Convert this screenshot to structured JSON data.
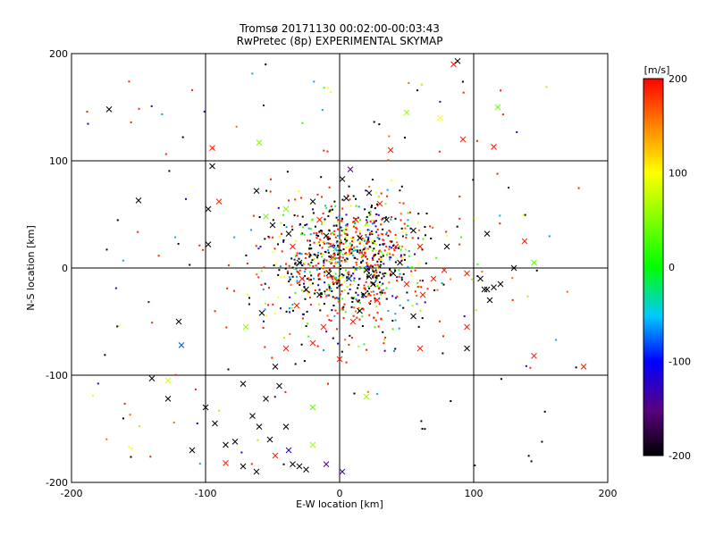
{
  "chart_data": {
    "type": "scatter",
    "title": "Tromsø 20171130 00:02:00-00:03:43",
    "subtitle": "RwPretec (8p) EXPERIMENTAL SKYMAP",
    "xlabel": "E-W location [km]",
    "ylabel": "N-S location [km]",
    "xlim": [
      -200,
      200
    ],
    "ylim": [
      -200,
      200
    ],
    "xticks": [
      "-200",
      "-100",
      "0",
      "100",
      "200"
    ],
    "yticks": [
      "-200",
      "-100",
      "0",
      "100",
      "200"
    ],
    "grid": true,
    "colorbar": {
      "label": "[m/s]",
      "range": [
        -200,
        200
      ],
      "ticks": [
        "200",
        "100",
        "0",
        "-100",
        "-200"
      ],
      "colors": [
        "#000000",
        "#5a0080",
        "#0000ff",
        "#00c8ff",
        "#00ff00",
        "#ffff00",
        "#ff8000",
        "#ff0000"
      ]
    },
    "cross_points": [
      {
        "x": -172,
        "y": 148,
        "v": -200
      },
      {
        "x": -150,
        "y": 63,
        "v": -200
      },
      {
        "x": -120,
        "y": -50,
        "v": -200
      },
      {
        "x": -140,
        "y": -103,
        "v": -200
      },
      {
        "x": -128,
        "y": -122,
        "v": -200
      },
      {
        "x": -110,
        "y": -170,
        "v": -200
      },
      {
        "x": -95,
        "y": 112,
        "v": 190
      },
      {
        "x": -95,
        "y": 95,
        "v": -200
      },
      {
        "x": -98,
        "y": 55,
        "v": -200
      },
      {
        "x": -98,
        "y": 22,
        "v": -200
      },
      {
        "x": -90,
        "y": 62,
        "v": 185
      },
      {
        "x": -100,
        "y": -130,
        "v": -200
      },
      {
        "x": -93,
        "y": -145,
        "v": -200
      },
      {
        "x": -85,
        "y": -165,
        "v": -200
      },
      {
        "x": -78,
        "y": -162,
        "v": -200
      },
      {
        "x": -85,
        "y": -182,
        "v": 190
      },
      {
        "x": -72,
        "y": -185,
        "v": -200
      },
      {
        "x": -72,
        "y": -108,
        "v": -200
      },
      {
        "x": -60,
        "y": 117,
        "v": 50
      },
      {
        "x": -62,
        "y": 72,
        "v": -200
      },
      {
        "x": -55,
        "y": 48,
        "v": 40
      },
      {
        "x": -50,
        "y": 40,
        "v": -200
      },
      {
        "x": -70,
        "y": -55,
        "v": 60
      },
      {
        "x": -58,
        "y": -42,
        "v": -200
      },
      {
        "x": -65,
        "y": -138,
        "v": -200
      },
      {
        "x": -60,
        "y": -148,
        "v": -200
      },
      {
        "x": -55,
        "y": -122,
        "v": -200
      },
      {
        "x": -52,
        "y": -160,
        "v": -200
      },
      {
        "x": -48,
        "y": -175,
        "v": 190
      },
      {
        "x": -62,
        "y": -190,
        "v": -200
      },
      {
        "x": -40,
        "y": -148,
        "v": -200
      },
      {
        "x": -38,
        "y": -170,
        "v": -120
      },
      {
        "x": -45,
        "y": -110,
        "v": -200
      },
      {
        "x": -40,
        "y": 55,
        "v": 50
      },
      {
        "x": -38,
        "y": 32,
        "v": -200
      },
      {
        "x": -35,
        "y": 20,
        "v": 190
      },
      {
        "x": -30,
        "y": 5,
        "v": -200
      },
      {
        "x": -28,
        "y": -10,
        "v": 190
      },
      {
        "x": -25,
        "y": -20,
        "v": -200
      },
      {
        "x": -32,
        "y": -35,
        "v": 190
      },
      {
        "x": -40,
        "y": -75,
        "v": 190
      },
      {
        "x": -48,
        "y": -92,
        "v": -200
      },
      {
        "x": -35,
        "y": -183,
        "v": -200
      },
      {
        "x": -30,
        "y": -185,
        "v": -200
      },
      {
        "x": -25,
        "y": -188,
        "v": -200
      },
      {
        "x": -20,
        "y": -165,
        "v": 60
      },
      {
        "x": -20,
        "y": -130,
        "v": 40
      },
      {
        "x": -10,
        "y": -183,
        "v": -150
      },
      {
        "x": -20,
        "y": 62,
        "v": -200
      },
      {
        "x": -15,
        "y": 45,
        "v": 190
      },
      {
        "x": -10,
        "y": 30,
        "v": -200
      },
      {
        "x": -5,
        "y": 10,
        "v": 190
      },
      {
        "x": -8,
        "y": -5,
        "v": -200
      },
      {
        "x": -2,
        "y": -12,
        "v": 190
      },
      {
        "x": -15,
        "y": -25,
        "v": -200
      },
      {
        "x": -12,
        "y": -55,
        "v": 190
      },
      {
        "x": -20,
        "y": -70,
        "v": 190
      },
      {
        "x": 2,
        "y": 83,
        "v": -200
      },
      {
        "x": 5,
        "y": 65,
        "v": -200
      },
      {
        "x": 8,
        "y": 92,
        "v": -150
      },
      {
        "x": 0,
        "y": -85,
        "v": 190
      },
      {
        "x": 2,
        "y": -190,
        "v": -140
      },
      {
        "x": 12,
        "y": 45,
        "v": 190
      },
      {
        "x": 15,
        "y": 28,
        "v": -200
      },
      {
        "x": 18,
        "y": 12,
        "v": 190
      },
      {
        "x": 20,
        "y": -2,
        "v": -200
      },
      {
        "x": 22,
        "y": -8,
        "v": -200
      },
      {
        "x": 25,
        "y": -15,
        "v": -200
      },
      {
        "x": 18,
        "y": -25,
        "v": -200
      },
      {
        "x": 28,
        "y": -30,
        "v": 190
      },
      {
        "x": 15,
        "y": -40,
        "v": -200
      },
      {
        "x": 10,
        "y": -50,
        "v": 190
      },
      {
        "x": 20,
        "y": -120,
        "v": 60
      },
      {
        "x": 22,
        "y": 70,
        "v": -200
      },
      {
        "x": 30,
        "y": 60,
        "v": 190
      },
      {
        "x": 38,
        "y": 110,
        "v": 190
      },
      {
        "x": 35,
        "y": 45,
        "v": -200
      },
      {
        "x": 42,
        "y": 20,
        "v": 190
      },
      {
        "x": 45,
        "y": 5,
        "v": -200
      },
      {
        "x": 40,
        "y": -5,
        "v": -200
      },
      {
        "x": 50,
        "y": -15,
        "v": 190
      },
      {
        "x": 55,
        "y": -45,
        "v": -200
      },
      {
        "x": 50,
        "y": 145,
        "v": 60
      },
      {
        "x": 55,
        "y": 35,
        "v": -200
      },
      {
        "x": 60,
        "y": 20,
        "v": 190
      },
      {
        "x": 62,
        "y": -25,
        "v": 190
      },
      {
        "x": 60,
        "y": -75,
        "v": 190
      },
      {
        "x": 70,
        "y": -10,
        "v": 190
      },
      {
        "x": 75,
        "y": 140,
        "v": 100
      },
      {
        "x": 80,
        "y": 20,
        "v": -200
      },
      {
        "x": 78,
        "y": -2,
        "v": 190
      },
      {
        "x": 85,
        "y": 190,
        "v": 190
      },
      {
        "x": 88,
        "y": 193,
        "v": -200
      },
      {
        "x": 92,
        "y": 120,
        "v": 190
      },
      {
        "x": 95,
        "y": -5,
        "v": 190
      },
      {
        "x": 95,
        "y": -55,
        "v": 190
      },
      {
        "x": 95,
        "y": -75,
        "v": -200
      },
      {
        "x": 105,
        "y": -10,
        "v": -200
      },
      {
        "x": 110,
        "y": -20,
        "v": -200
      },
      {
        "x": 115,
        "y": -18,
        "v": -200
      },
      {
        "x": 120,
        "y": -15,
        "v": -200
      },
      {
        "x": 112,
        "y": -30,
        "v": -200
      },
      {
        "x": 108,
        "y": -20,
        "v": -200
      },
      {
        "x": 110,
        "y": 32,
        "v": -200
      },
      {
        "x": 118,
        "y": 150,
        "v": 40
      },
      {
        "x": 115,
        "y": 113,
        "v": 190
      },
      {
        "x": 130,
        "y": 0,
        "v": -200
      },
      {
        "x": 138,
        "y": 25,
        "v": 190
      },
      {
        "x": 145,
        "y": 5,
        "v": 30
      },
      {
        "x": 145,
        "y": -82,
        "v": 190
      },
      {
        "x": 182,
        "y": -92,
        "v": 190
      },
      {
        "x": -118,
        "y": -72,
        "v": -80
      },
      {
        "x": -128,
        "y": -105,
        "v": 90
      },
      {
        "x": 7,
        "y": -10,
        "v": -120
      },
      {
        "x": -3,
        "y": 18,
        "v": -40
      }
    ]
  }
}
